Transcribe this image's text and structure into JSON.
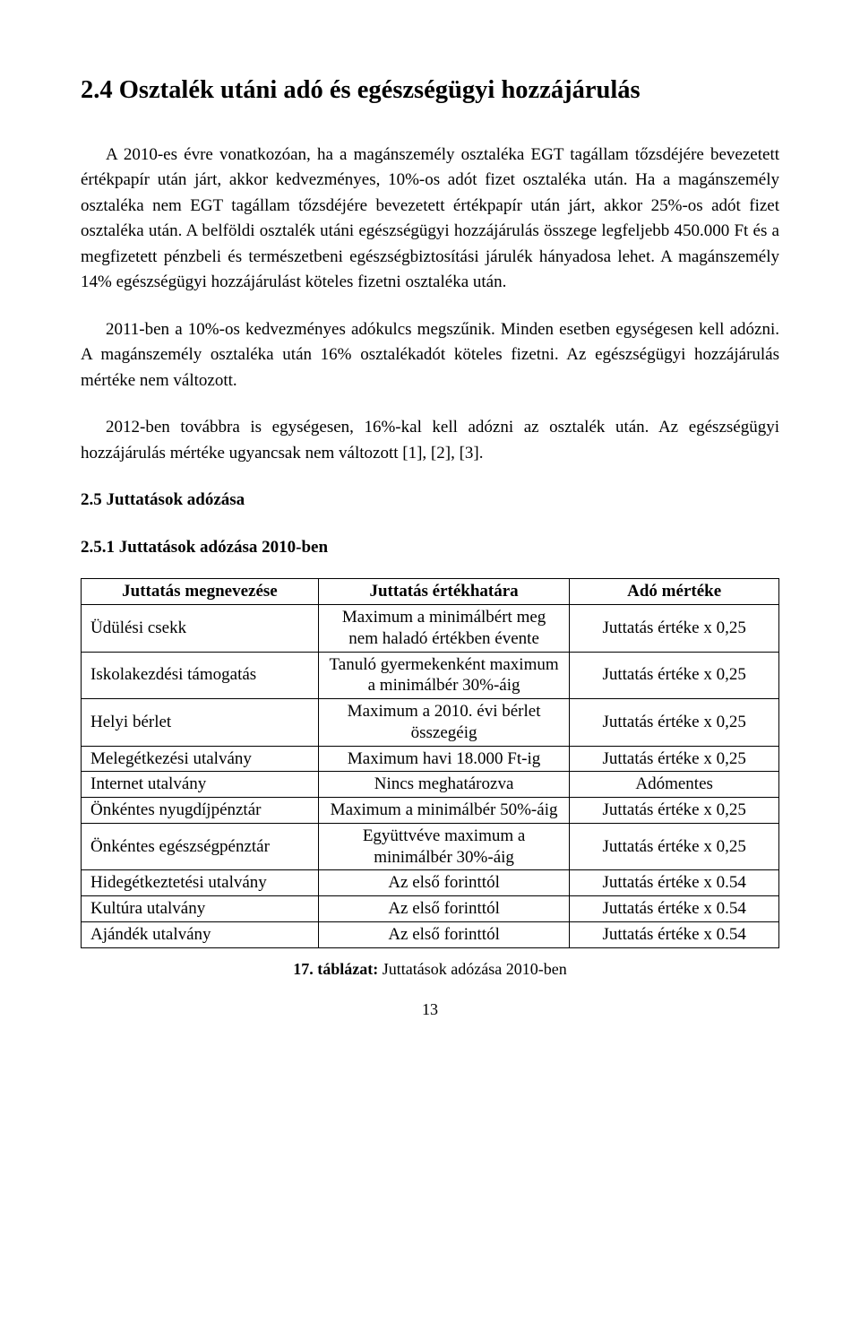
{
  "section24": {
    "heading": "2.4 Osztalék utáni adó és egészségügyi hozzájárulás",
    "p1": "A 2010-es évre vonatkozóan, ha a magánszemély osztaléka EGT tagállam tőzsdéjére bevezetett értékpapír után járt, akkor kedvezményes, 10%-os adót fizet osztaléka után. Ha a magánszemély osztaléka nem EGT tagállam tőzsdéjére bevezetett értékpapír után járt, akkor 25%-os adót fizet osztaléka után. A belföldi osztalék utáni egészségügyi hozzájárulás összege legfeljebb 450.000 Ft és a megfizetett pénzbeli és természetbeni egészségbiztosítási járulék hányadosa lehet. A magánszemély 14% egészségügyi hozzájárulást köteles fizetni osztaléka után.",
    "p2": "2011-ben a 10%-os kedvezményes adókulcs megszűnik. Minden esetben egységesen kell adózni. A magánszemély osztaléka után 16% osztalékadót köteles fizetni. Az egészségügyi hozzájárulás mértéke nem változott.",
    "p3": "2012-ben továbbra is egységesen, 16%-kal kell adózni az osztalék után. Az egészségügyi hozzájárulás mértéke ugyancsak nem változott [1], [2], [3]."
  },
  "section25": {
    "heading": "2.5 Juttatások adózása",
    "subheading": "2.5.1 Juttatások adózása 2010-ben"
  },
  "table": {
    "headers": [
      "Juttatás megnevezése",
      "Juttatás értékhatára",
      "Adó mértéke"
    ],
    "rows": [
      [
        "Üdülési csekk",
        "Maximum a minimálbért meg nem haladó értékben évente",
        "Juttatás értéke x 0,25"
      ],
      [
        "Iskolakezdési támogatás",
        "Tanuló gyermekenként maximum a minimálbér 30%-áig",
        "Juttatás értéke x 0,25"
      ],
      [
        "Helyi bérlet",
        "Maximum a 2010. évi bérlet összegéig",
        "Juttatás értéke x 0,25"
      ],
      [
        "Melegétkezési utalvány",
        "Maximum havi 18.000 Ft-ig",
        "Juttatás értéke x 0,25"
      ],
      [
        "Internet utalvány",
        "Nincs meghatározva",
        "Adómentes"
      ],
      [
        "Önkéntes nyugdíjpénztár",
        "Maximum a minimálbér 50%-áig",
        "Juttatás értéke x 0,25"
      ],
      [
        "Önkéntes egészségpénztár",
        "Együttvéve maximum a minimálbér 30%-áig",
        "Juttatás értéke x 0,25"
      ],
      [
        "Hidegétkeztetési utalvány",
        "Az első forinttól",
        "Juttatás értéke x 0.54"
      ],
      [
        "Kultúra utalvány",
        "Az első forinttól",
        "Juttatás értéke x 0.54"
      ],
      [
        "Ajándék utalvány",
        "Az első forinttól",
        "Juttatás értéke x 0.54"
      ]
    ]
  },
  "caption": {
    "bold": "17. táblázat:",
    "rest": " Juttatások adózása 2010-ben"
  },
  "page_number": "13"
}
